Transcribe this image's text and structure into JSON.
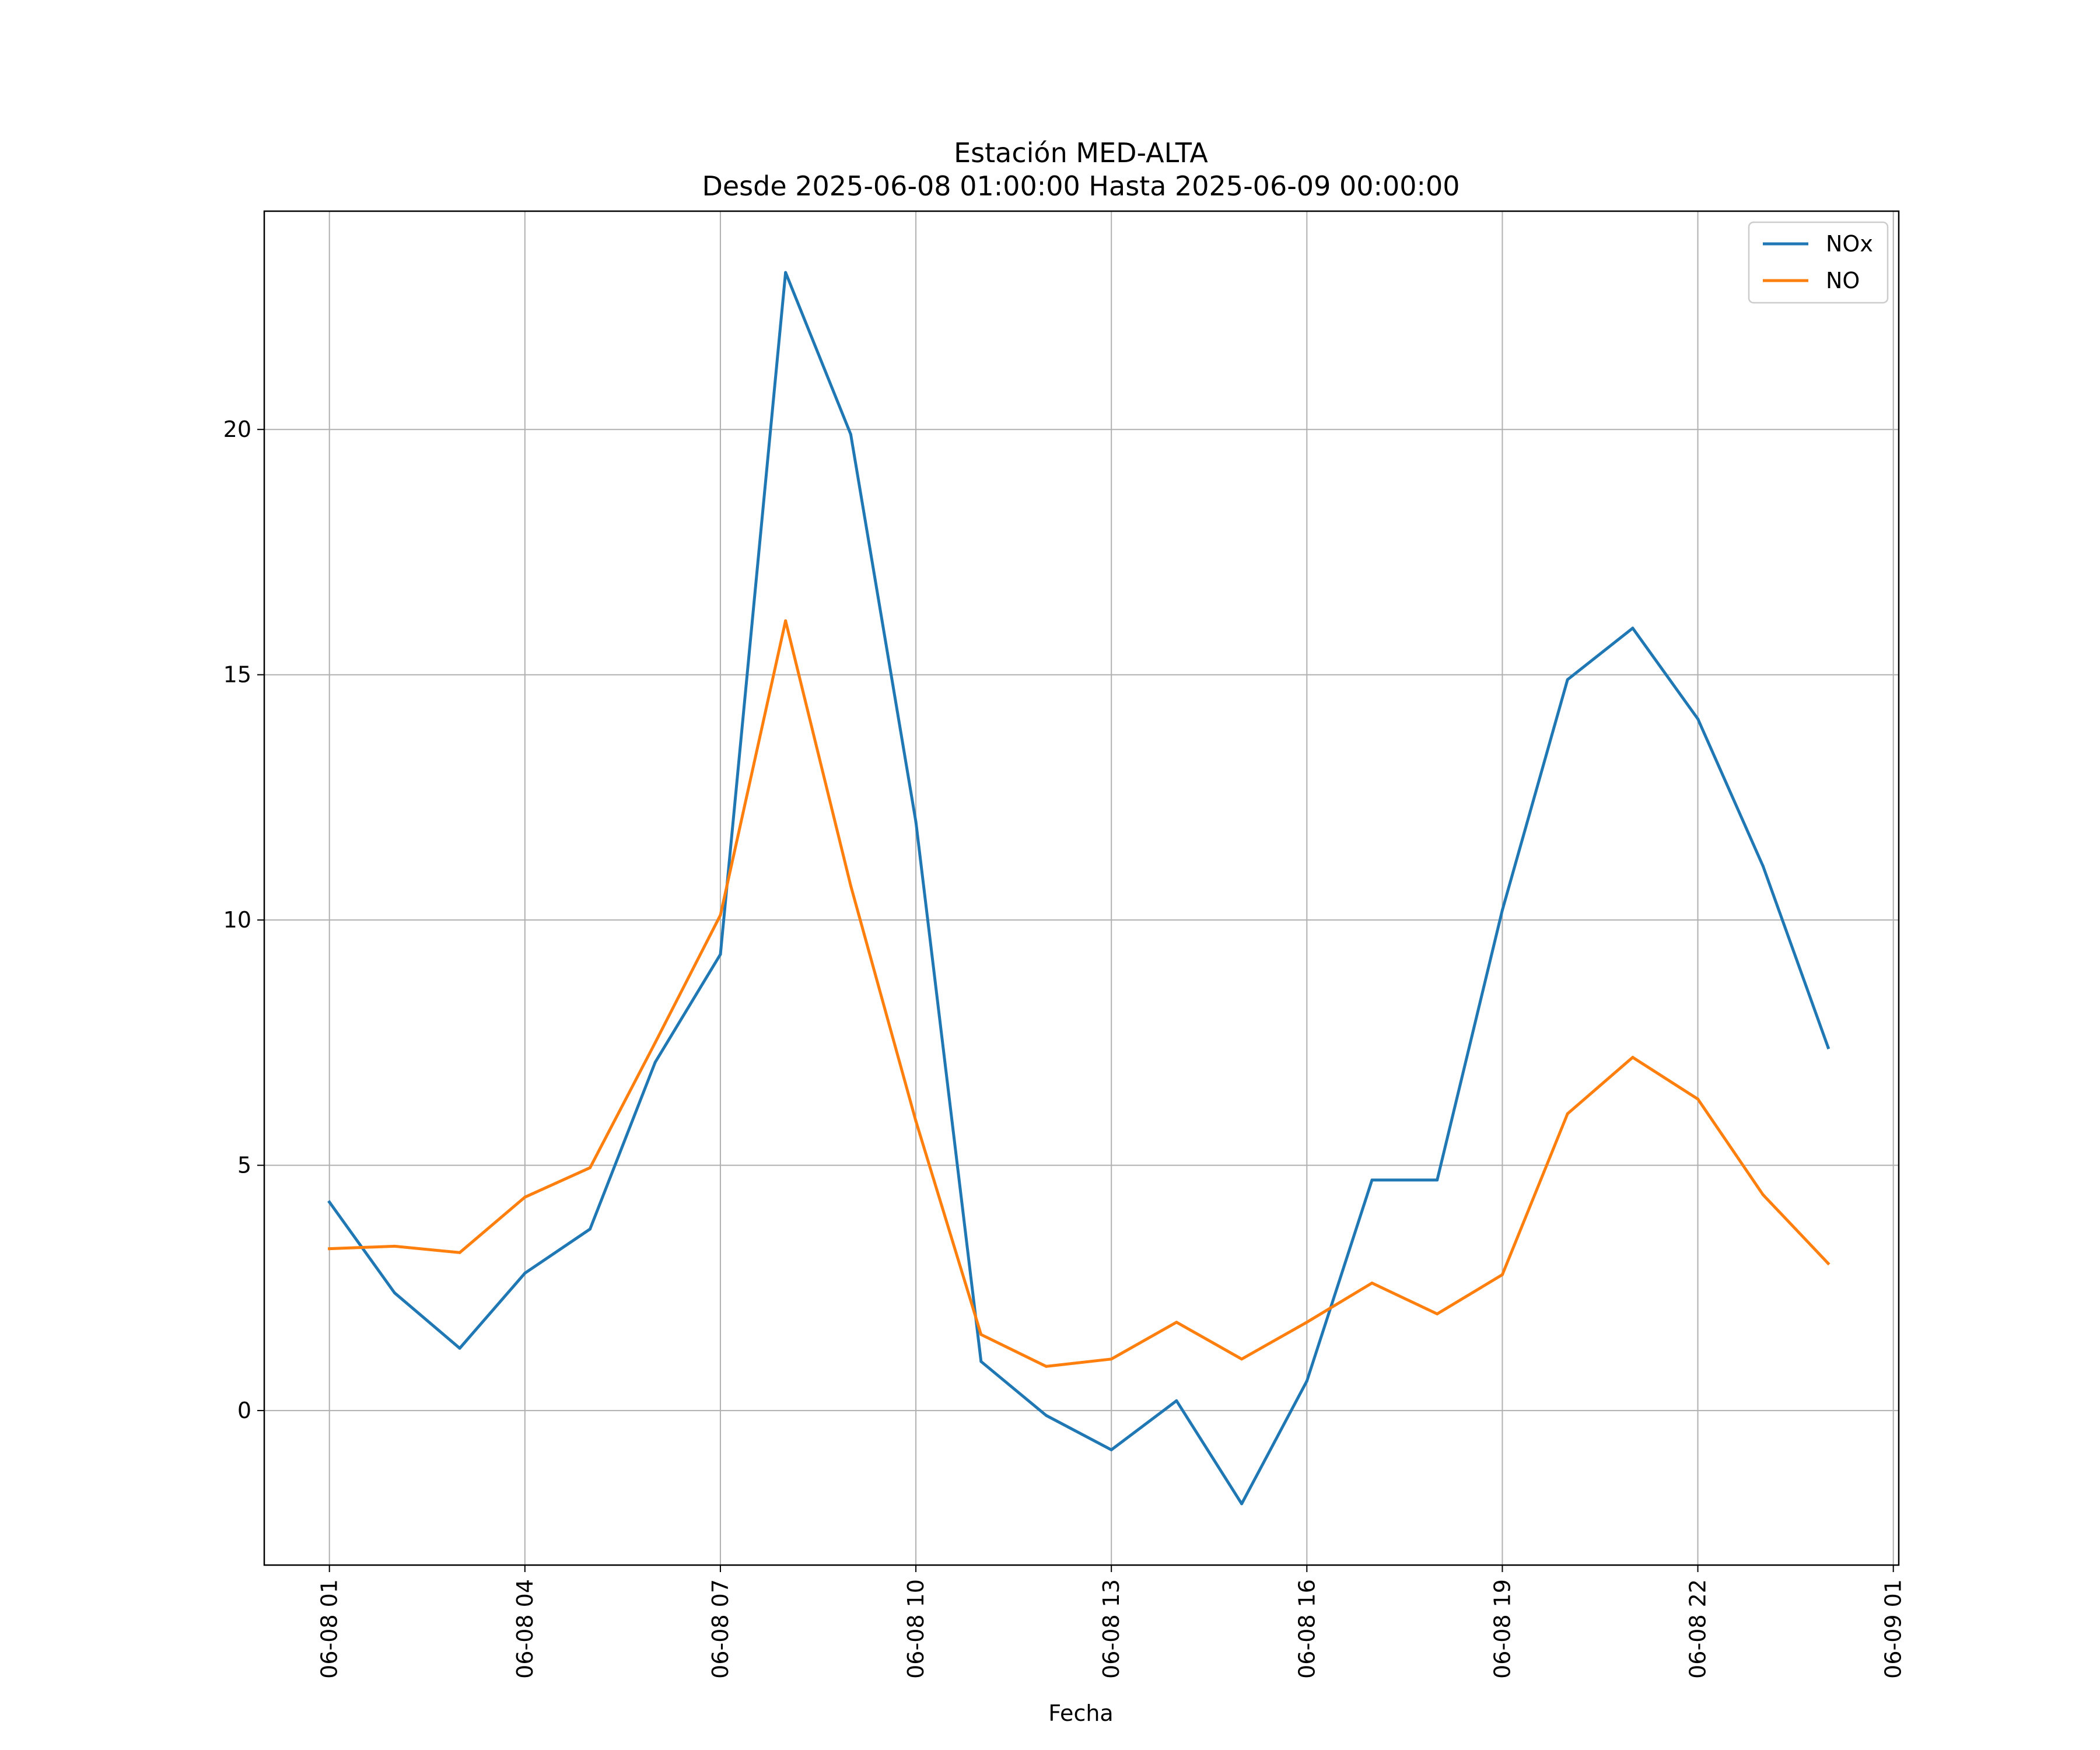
{
  "chart_data": {
    "type": "line",
    "title": "Estación MED-ALTA",
    "subtitle": "Desde 2025-06-08 01:00:00 Hasta 2025-06-09 00:00:00",
    "xlabel": "Fecha",
    "ylabel": "",
    "x": [
      "2025-06-08 01:00",
      "2025-06-08 02:00",
      "2025-06-08 03:00",
      "2025-06-08 04:00",
      "2025-06-08 05:00",
      "2025-06-08 06:00",
      "2025-06-08 07:00",
      "2025-06-08 08:00",
      "2025-06-08 09:00",
      "2025-06-08 10:00",
      "2025-06-08 11:00",
      "2025-06-08 12:00",
      "2025-06-08 13:00",
      "2025-06-08 14:00",
      "2025-06-08 15:00",
      "2025-06-08 16:00",
      "2025-06-08 17:00",
      "2025-06-08 18:00",
      "2025-06-08 19:00",
      "2025-06-08 20:00",
      "2025-06-08 21:00",
      "2025-06-08 22:00",
      "2025-06-08 23:00",
      "2025-06-09 00:00"
    ],
    "xtick_labels": [
      "06-08 01",
      "06-08 04",
      "06-08 07",
      "06-08 10",
      "06-08 13",
      "06-08 16",
      "06-08 19",
      "06-08 22",
      "06-09 01"
    ],
    "xtick_values": [
      "2025-06-08 01:00",
      "2025-06-08 04:00",
      "2025-06-08 07:00",
      "2025-06-08 10:00",
      "2025-06-08 13:00",
      "2025-06-08 16:00",
      "2025-06-08 19:00",
      "2025-06-08 22:00",
      "2025-06-09 01:00"
    ],
    "xlim": [
      "2025-06-08 00:00",
      "2025-06-09 01:05"
    ],
    "yticks": [
      0,
      5,
      10,
      15,
      20
    ],
    "ylim": [
      -3.15,
      24.45
    ],
    "grid": true,
    "legend_position": "top-right",
    "series": [
      {
        "name": "NOx",
        "color": "#1f77b4",
        "values": [
          4.25,
          2.4,
          1.27,
          2.8,
          3.7,
          7.1,
          9.3,
          23.2,
          19.9,
          12.0,
          1.0,
          -0.1,
          -0.8,
          0.2,
          -1.9,
          0.6,
          4.7,
          4.7,
          10.2,
          14.9,
          15.95,
          14.1,
          11.1,
          7.4
        ]
      },
      {
        "name": "NO",
        "color": "#ff7f0e",
        "values": [
          3.3,
          3.35,
          3.22,
          4.35,
          4.95,
          7.5,
          10.1,
          16.1,
          10.7,
          5.9,
          1.55,
          0.9,
          1.05,
          1.8,
          1.05,
          1.8,
          2.6,
          1.97,
          2.77,
          6.05,
          7.2,
          6.35,
          4.4,
          3.0
        ]
      }
    ]
  }
}
